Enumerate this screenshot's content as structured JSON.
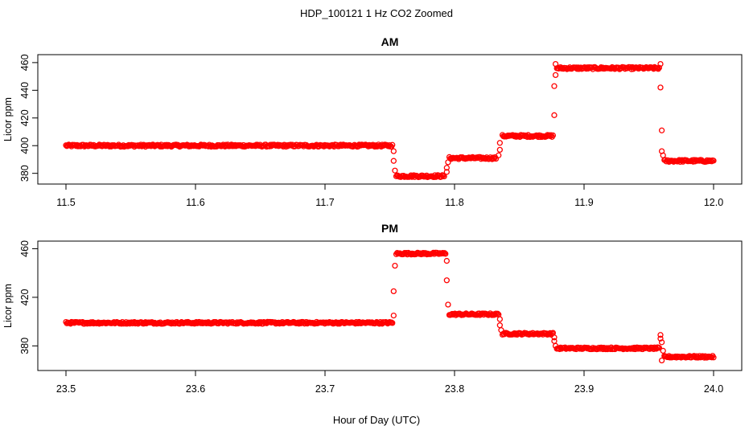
{
  "figure": {
    "title": "HDP_100121  1 Hz CO2 Zoomed",
    "xlabel": "Hour of Day (UTC)",
    "point_color": "#ff0000"
  },
  "chart_data": [
    {
      "type": "scatter",
      "title": "AM",
      "xlabel": "Hour of Day (UTC)",
      "ylabel": "Licor ppm",
      "xlim": [
        11.5,
        12.0
      ],
      "ylim": [
        376,
        462
      ],
      "xticks": [
        "11.5",
        "11.6",
        "11.7",
        "11.8",
        "11.9",
        "12.0"
      ],
      "xtick_values": [
        11.5,
        11.6,
        11.7,
        11.8,
        11.9,
        12.0
      ],
      "yticks": [
        "380",
        "400",
        "420",
        "440",
        "460"
      ],
      "ytick_values": [
        380,
        400,
        420,
        440,
        460
      ],
      "marker": "open-circle",
      "segments": [
        {
          "x_start": 11.5,
          "x_end": 11.752,
          "y": 400
        },
        {
          "x_start": 11.755,
          "x_end": 11.792,
          "y": 378
        },
        {
          "x_start": 11.796,
          "x_end": 11.832,
          "y": 391
        },
        {
          "x_start": 11.837,
          "x_end": 11.876,
          "y": 407
        },
        {
          "x_start": 11.879,
          "x_end": 11.958,
          "y": 456
        },
        {
          "x_start": 11.962,
          "x_end": 12.0,
          "y": 389
        }
      ],
      "transitions": [
        {
          "x": 11.753,
          "y": 396
        },
        {
          "x": 11.753,
          "y": 389
        },
        {
          "x": 11.754,
          "y": 382
        },
        {
          "x": 11.794,
          "y": 381
        },
        {
          "x": 11.794,
          "y": 384
        },
        {
          "x": 11.795,
          "y": 388
        },
        {
          "x": 11.834,
          "y": 393
        },
        {
          "x": 11.835,
          "y": 397
        },
        {
          "x": 11.835,
          "y": 402
        },
        {
          "x": 11.877,
          "y": 422
        },
        {
          "x": 11.877,
          "y": 443
        },
        {
          "x": 11.878,
          "y": 451
        },
        {
          "x": 11.878,
          "y": 459
        },
        {
          "x": 11.959,
          "y": 459
        },
        {
          "x": 11.959,
          "y": 442
        },
        {
          "x": 11.96,
          "y": 411
        },
        {
          "x": 11.96,
          "y": 396
        },
        {
          "x": 11.961,
          "y": 393
        }
      ]
    },
    {
      "type": "scatter",
      "title": "PM",
      "xlabel": "Hour of Day (UTC)",
      "ylabel": "Licor ppm",
      "xlim": [
        23.5,
        24.0
      ],
      "ylim": [
        364,
        462
      ],
      "xticks": [
        "23.5",
        "23.6",
        "23.7",
        "23.8",
        "23.9",
        "24.0"
      ],
      "xtick_values": [
        23.5,
        23.6,
        23.7,
        23.8,
        23.9,
        24.0
      ],
      "yticks": [
        "380",
        "420",
        "460"
      ],
      "ytick_values": [
        380,
        420,
        460
      ],
      "marker": "open-circle",
      "segments": [
        {
          "x_start": 23.5,
          "x_end": 23.752,
          "y": 399
        },
        {
          "x_start": 23.755,
          "x_end": 23.793,
          "y": 456
        },
        {
          "x_start": 23.796,
          "x_end": 23.834,
          "y": 406
        },
        {
          "x_start": 23.837,
          "x_end": 23.876,
          "y": 390
        },
        {
          "x_start": 23.879,
          "x_end": 23.958,
          "y": 378
        },
        {
          "x_start": 23.962,
          "x_end": 24.0,
          "y": 371
        }
      ],
      "transitions": [
        {
          "x": 23.753,
          "y": 405
        },
        {
          "x": 23.753,
          "y": 425
        },
        {
          "x": 23.754,
          "y": 446
        },
        {
          "x": 23.794,
          "y": 450
        },
        {
          "x": 23.794,
          "y": 434
        },
        {
          "x": 23.795,
          "y": 414
        },
        {
          "x": 23.835,
          "y": 402
        },
        {
          "x": 23.835,
          "y": 397
        },
        {
          "x": 23.836,
          "y": 393
        },
        {
          "x": 23.877,
          "y": 387
        },
        {
          "x": 23.877,
          "y": 384
        },
        {
          "x": 23.878,
          "y": 380
        },
        {
          "x": 23.959,
          "y": 389
        },
        {
          "x": 23.959,
          "y": 386
        },
        {
          "x": 23.96,
          "y": 368
        },
        {
          "x": 23.96,
          "y": 383
        },
        {
          "x": 23.961,
          "y": 376
        }
      ]
    }
  ]
}
